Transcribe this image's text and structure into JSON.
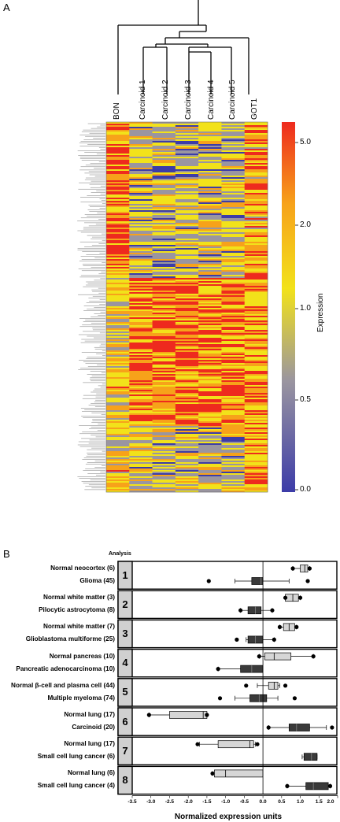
{
  "panel_a_label": "A",
  "panel_b_label": "B",
  "chart_data": [
    {
      "type": "heatmap",
      "columns": [
        "BON",
        "Carcinoid 1",
        "Carcinoid 2",
        "Carcinoid 3",
        "Carcinoid 4",
        "Carcinoid 5",
        "GOT1"
      ],
      "colorbar_label": "Expression",
      "colorbar_ticks": [
        "5.0",
        "2.0",
        "1.0",
        "0.5",
        "0.0"
      ],
      "colorscale": [
        "#3c3ca8",
        "#9a95a0",
        "#f2e21a",
        "#f7a21a",
        "#ee2a1e"
      ],
      "dendrogram": "hierarchical clustering of columns and rows"
    },
    {
      "type": "box",
      "header": "Analysis",
      "xlabel": "Normalized expression units",
      "xlim": [
        -3.5,
        2.0
      ],
      "xticks": [
        "-3.5",
        "-3.0",
        "-2.5",
        "-2.0",
        "-1.5",
        "-1.0",
        "-0.5",
        "0.0",
        "0.5",
        "1.0",
        "1.5",
        "2.0"
      ],
      "analyses": [
        {
          "id": "1",
          "rows": [
            {
              "label": "Normal neocortex (6)",
              "shade": "light",
              "whisker": [
                0.8,
                1.25
              ],
              "q1": 1.0,
              "median": 1.12,
              "q3": 1.2,
              "outliers": [
                0.8,
                1.25
              ]
            },
            {
              "label": "Glioma (45)",
              "shade": "dark",
              "whisker": [
                -0.75,
                0.7
              ],
              "q1": -0.3,
              "median": -0.05,
              "q3": 0.0,
              "outliers": [
                -1.45,
                1.2
              ]
            }
          ]
        },
        {
          "id": "2",
          "rows": [
            {
              "label": "Normal white matter (3)",
              "shade": "light",
              "whisker": [
                0.6,
                1.0
              ],
              "q1": 0.6,
              "median": 0.8,
              "q3": 0.95,
              "outliers": [
                0.6,
                1.0
              ]
            },
            {
              "label": "Pilocytic astrocytoma (8)",
              "shade": "dark",
              "whisker": [
                -0.6,
                0.25
              ],
              "q1": -0.4,
              "median": -0.2,
              "q3": -0.05,
              "outliers": [
                -0.6,
                0.25
              ]
            }
          ]
        },
        {
          "id": "3",
          "rows": [
            {
              "label": "Normal white matter (7)",
              "shade": "light",
              "whisker": [
                0.45,
                0.9
              ],
              "q1": 0.55,
              "median": 0.7,
              "q3": 0.85,
              "outliers": [
                0.45,
                0.9
              ]
            },
            {
              "label": "Glioblastoma multiforme (25)",
              "shade": "dark",
              "whisker": [
                -0.45,
                0.3
              ],
              "q1": -0.4,
              "median": -0.2,
              "q3": 0.0,
              "outliers": [
                -0.7,
                0.3
              ]
            }
          ]
        },
        {
          "id": "4",
          "rows": [
            {
              "label": "Normal pancreas (10)",
              "shade": "light",
              "whisker": [
                -0.1,
                1.35
              ],
              "q1": 0.05,
              "median": 0.3,
              "q3": 0.75,
              "outliers": [
                -0.1,
                1.35
              ]
            },
            {
              "label": "Pancreatic adenocarcinoma (10)",
              "shade": "dark",
              "whisker": [
                -1.2,
                0.0
              ],
              "q1": -0.6,
              "median": -0.3,
              "q3": 0.0,
              "outliers": [
                -1.2
              ]
            }
          ]
        },
        {
          "id": "5",
          "rows": [
            {
              "label": "Normal β-cell and plasma cell (44)",
              "shade": "light",
              "whisker": [
                -0.15,
                0.45
              ],
              "q1": 0.15,
              "median": 0.3,
              "q3": 0.4,
              "outliers": [
                -0.45,
                0.6
              ]
            },
            {
              "label": "Multiple myeloma (74)",
              "shade": "dark",
              "whisker": [
                -0.75,
                0.4
              ],
              "q1": -0.35,
              "median": -0.1,
              "q3": 0.1,
              "outliers": [
                -1.15,
                0.85
              ]
            }
          ]
        },
        {
          "id": "6",
          "rows": [
            {
              "label": "Normal lung (17)",
              "shade": "light",
              "whisker": [
                -3.05,
                -1.5
              ],
              "q1": -2.5,
              "median": -1.6,
              "q3": -1.5,
              "outliers": [
                -3.05,
                -1.5
              ]
            },
            {
              "label": "Carcinoid (20)",
              "shade": "dark",
              "whisker": [
                0.15,
                1.7
              ],
              "q1": 0.7,
              "median": 0.9,
              "q3": 1.25,
              "outliers": [
                0.15,
                1.85
              ]
            }
          ]
        },
        {
          "id": "7",
          "rows": [
            {
              "label": "Normal lung (17)",
              "shade": "light",
              "whisker": [
                -1.7,
                -0.2
              ],
              "q1": -1.2,
              "median": -0.35,
              "q3": -0.25,
              "outliers": [
                -1.75,
                -0.15
              ]
            },
            {
              "label": "Small cell lung cancer (6)",
              "shade": "dark",
              "whisker": [
                1.05,
                1.45
              ],
              "q1": 1.1,
              "median": 1.3,
              "q3": 1.45,
              "outliers": []
            }
          ]
        },
        {
          "id": "8",
          "rows": [
            {
              "label": "Normal lung (6)",
              "shade": "light",
              "whisker": [
                -1.35,
                0.0
              ],
              "q1": -1.3,
              "median": -1.0,
              "q3": 0.0,
              "outliers": [
                -1.35
              ]
            },
            {
              "label": "Small cell lung cancer (4)",
              "shade": "dark",
              "whisker": [
                0.65,
                1.8
              ],
              "q1": 1.15,
              "median": 1.35,
              "q3": 1.75,
              "outliers": [
                0.65,
                1.8
              ]
            }
          ]
        }
      ]
    }
  ]
}
